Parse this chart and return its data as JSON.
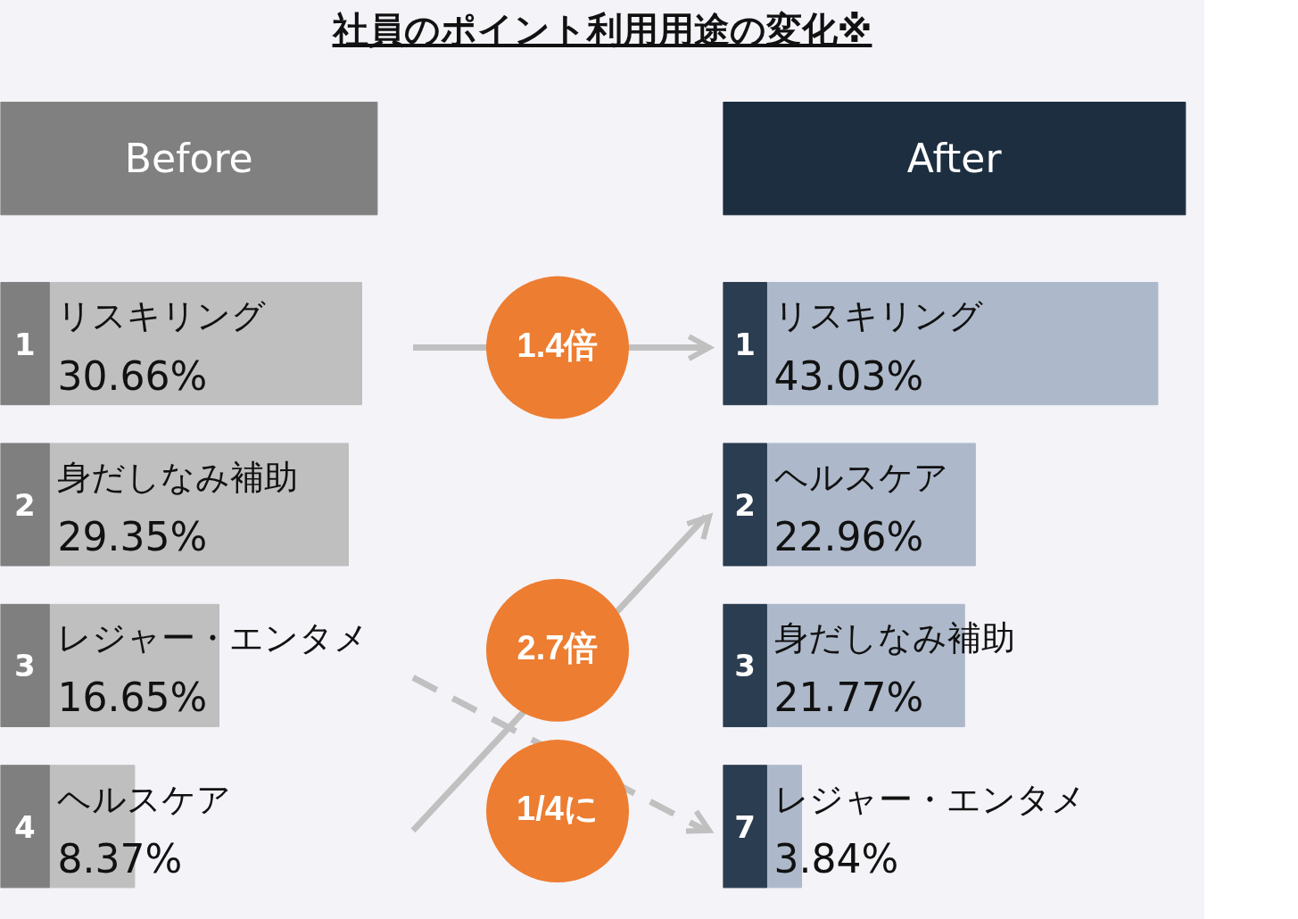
{
  "chart_data": [
    {
      "type": "bar",
      "orientation": "horizontal",
      "title": "Before",
      "categories": [
        "リスキリング",
        "身だしなみ補助",
        "レジャー・エンタメ",
        "ヘルスケア"
      ],
      "values": [
        30.66,
        29.35,
        16.65,
        8.37
      ],
      "value_labels": [
        "30.66%",
        "29.35%",
        "16.65%",
        "8.37%"
      ],
      "color": "#bfbfbf",
      "tick_labels": false,
      "annotations": [
        "社員のポイント利用用途の変化※",
        "1",
        "2",
        "3",
        "4"
      ]
    },
    {
      "type": "bar",
      "orientation": "horizontal",
      "title": "After",
      "categories": [
        "リスキリング",
        "ヘルスケア",
        "身だしなみ補助",
        "レジャー・エンタメ"
      ],
      "values": [
        43.03,
        22.96,
        21.77,
        3.84
      ],
      "value_labels": [
        "43.03%",
        "22.96%",
        "21.77%",
        "3.84%"
      ],
      "color": "#adb9ca",
      "tick_labels": false,
      "annotations": [
        "1.4倍",
        "2.7倍",
        "1/4に",
        "1",
        "2",
        "3",
        "7"
      ]
    }
  ]
}
